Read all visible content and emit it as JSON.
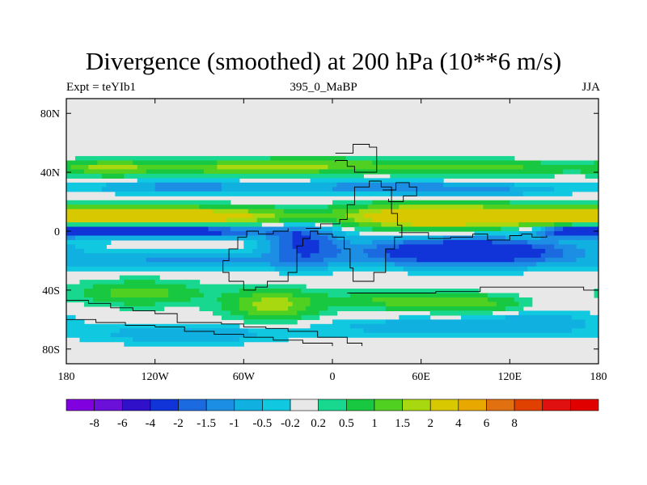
{
  "title": "Divergence (smoothed) at 200 hPa (10**6 m/s)",
  "subtitle_left": "Expt = teYIb1",
  "subtitle_center": "395_0_MaBP",
  "subtitle_right": "JJA",
  "map": {
    "lon_range": [
      -180,
      180
    ],
    "lat_range": [
      -90,
      90
    ],
    "x_ticks": [
      {
        "lon": -180,
        "label": "180"
      },
      {
        "lon": -120,
        "label": "120W"
      },
      {
        "lon": -60,
        "label": "60W"
      },
      {
        "lon": 0,
        "label": "0"
      },
      {
        "lon": 60,
        "label": "60E"
      },
      {
        "lon": 120,
        "label": "120E"
      },
      {
        "lon": 180,
        "label": "180"
      }
    ],
    "y_ticks": [
      {
        "lat": 80,
        "label": "80N"
      },
      {
        "lat": 40,
        "label": "40N"
      },
      {
        "lat": 0,
        "label": "0"
      },
      {
        "lat": -40,
        "label": "40S"
      },
      {
        "lat": -80,
        "label": "80S"
      }
    ],
    "background_color": "#e8e8e8"
  },
  "colorbar": {
    "colors": [
      "#8000e0",
      "#6a10d8",
      "#3010c8",
      "#1034d8",
      "#1c6ae0",
      "#1c8ee4",
      "#10b0e0",
      "#10c8e0",
      "#e8e8e8",
      "#18d890",
      "#18c840",
      "#50d020",
      "#a8d810",
      "#d8c800",
      "#e8a800",
      "#e07010",
      "#e04000",
      "#e01010",
      "#e00000"
    ],
    "labels": [
      "-8",
      "-6",
      "-4",
      "-2",
      "-1.5",
      "-1",
      "-0.5",
      "-0.2",
      "0.2",
      "0.5",
      "1",
      "1.5",
      "2",
      "4",
      "6",
      "8"
    ]
  },
  "field": {
    "levels": [
      -8,
      -6,
      -4,
      -2,
      -1.5,
      -1,
      -0.5,
      -0.2,
      0.2,
      0.5,
      1,
      1.5,
      2,
      4,
      6,
      8
    ],
    "blobs": [
      {
        "lon": -100,
        "lat": 10,
        "dlon": 90,
        "dlat": 6,
        "amp": 2.6
      },
      {
        "lon": -140,
        "lat": 12,
        "dlon": 45,
        "dlat": 5,
        "amp": 1.6
      },
      {
        "lon": 70,
        "lat": 10,
        "dlon": 55,
        "dlat": 8,
        "amp": 3.5
      },
      {
        "lon": 150,
        "lat": 10,
        "dlon": 40,
        "dlat": 6,
        "amp": 2.5
      },
      {
        "lon": -120,
        "lat": 0,
        "dlon": 70,
        "dlat": 4,
        "amp": -3.5
      },
      {
        "lon": 165,
        "lat": 0,
        "dlon": 22,
        "dlat": 4,
        "amp": -2.5
      },
      {
        "lon": 90,
        "lat": -14,
        "dlon": 70,
        "dlat": 9,
        "amp": -3.6
      },
      {
        "lon": -20,
        "lat": -8,
        "dlon": 25,
        "dlat": 14,
        "amp": -2.0
      },
      {
        "lon": -150,
        "lat": 43,
        "dlon": 30,
        "dlat": 5,
        "amp": 1.6
      },
      {
        "lon": -60,
        "lat": 43,
        "dlon": 60,
        "dlat": 5,
        "amp": 1.5
      },
      {
        "lon": 100,
        "lat": 43,
        "dlon": 65,
        "dlat": 5,
        "amp": 1.2
      },
      {
        "lon": 0,
        "lat": 45,
        "dlon": 60,
        "dlat": 5,
        "amp": 0.9
      },
      {
        "lon": -100,
        "lat": 30,
        "dlon": 60,
        "dlat": 4,
        "amp": -1.3
      },
      {
        "lon": 30,
        "lat": 30,
        "dlon": 60,
        "dlat": 4,
        "amp": -1.3
      },
      {
        "lon": 100,
        "lat": 28,
        "dlon": 55,
        "dlat": 4,
        "amp": -1.0
      },
      {
        "lon": -90,
        "lat": -20,
        "dlon": 80,
        "dlat": 5,
        "amp": -1.2
      },
      {
        "lon": -130,
        "lat": -42,
        "dlon": 40,
        "dlat": 8,
        "amp": 1.3
      },
      {
        "lon": -40,
        "lat": -50,
        "dlon": 30,
        "dlat": 10,
        "amp": 1.8
      },
      {
        "lon": 50,
        "lat": -47,
        "dlon": 45,
        "dlat": 6,
        "amp": 1.3
      },
      {
        "lon": 100,
        "lat": -50,
        "dlon": 30,
        "dlat": 6,
        "amp": 1.0
      },
      {
        "lon": -100,
        "lat": -70,
        "dlon": 60,
        "dlat": 6,
        "amp": -1.0
      },
      {
        "lon": 60,
        "lat": -65,
        "dlon": 70,
        "dlat": 6,
        "amp": -0.8
      },
      {
        "lon": 140,
        "lat": -62,
        "dlon": 40,
        "dlat": 8,
        "amp": -0.8
      }
    ]
  },
  "coastlines": [
    [
      [
        2,
        53
      ],
      [
        14,
        59
      ],
      [
        25,
        57
      ],
      [
        30,
        52
      ],
      [
        30,
        40
      ],
      [
        22,
        40
      ],
      [
        15,
        44
      ],
      [
        10,
        48
      ],
      [
        2,
        47
      ]
    ],
    [
      [
        34,
        28
      ],
      [
        43,
        33
      ],
      [
        52,
        30
      ],
      [
        57,
        24
      ],
      [
        48,
        20
      ],
      [
        38,
        22
      ]
    ],
    [
      [
        -18,
        2
      ],
      [
        -8,
        5
      ],
      [
        5,
        8
      ],
      [
        10,
        18
      ],
      [
        15,
        30
      ],
      [
        25,
        34
      ],
      [
        33,
        30
      ],
      [
        40,
        12
      ],
      [
        44,
        4
      ],
      [
        47,
        -4
      ],
      [
        42,
        -12
      ],
      [
        36,
        -28
      ],
      [
        28,
        -34
      ],
      [
        20,
        -34
      ],
      [
        14,
        -25
      ],
      [
        12,
        -12
      ],
      [
        8,
        -4
      ],
      [
        0,
        -2
      ],
      [
        -10,
        0
      ],
      [
        -15,
        -5
      ],
      [
        -20,
        -10
      ],
      [
        -24,
        -28
      ],
      [
        -30,
        -34
      ],
      [
        -44,
        -38
      ],
      [
        -52,
        -40
      ],
      [
        -60,
        -34
      ],
      [
        -70,
        -28
      ],
      [
        -74,
        -20
      ],
      [
        -70,
        -12
      ],
      [
        -64,
        -4
      ],
      [
        -58,
        0
      ],
      [
        -50,
        -2
      ],
      [
        -40,
        0
      ],
      [
        -30,
        2
      ]
    ],
    [
      [
        45,
        -1
      ],
      [
        65,
        -5
      ],
      [
        80,
        -4
      ],
      [
        95,
        -2
      ],
      [
        105,
        -6
      ],
      [
        120,
        -3
      ],
      [
        128,
        -2
      ],
      [
        135,
        -4
      ],
      [
        145,
        -3
      ]
    ],
    [
      [
        10,
        -42
      ],
      [
        40,
        -42
      ],
      [
        70,
        -41
      ],
      [
        100,
        -38
      ],
      [
        140,
        -38
      ],
      [
        170,
        -40
      ],
      [
        180,
        -42
      ]
    ],
    [
      [
        -180,
        -47
      ],
      [
        -165,
        -49
      ],
      [
        -150,
        -52
      ],
      [
        -135,
        -54
      ],
      [
        -120,
        -56
      ],
      [
        -105,
        -62
      ],
      [
        -90,
        -62
      ],
      [
        -75,
        -63
      ],
      [
        -60,
        -65
      ],
      [
        -45,
        -66
      ],
      [
        -30,
        -68
      ],
      [
        -10,
        -72
      ],
      [
        10,
        -76
      ],
      [
        20,
        -78
      ]
    ],
    [
      [
        -180,
        -60
      ],
      [
        -160,
        -62
      ],
      [
        -140,
        -64
      ],
      [
        -120,
        -65
      ],
      [
        -100,
        -68
      ],
      [
        -80,
        -70
      ],
      [
        -60,
        -72
      ],
      [
        -40,
        -74
      ],
      [
        -20,
        -76
      ],
      [
        0,
        -78
      ]
    ]
  ]
}
